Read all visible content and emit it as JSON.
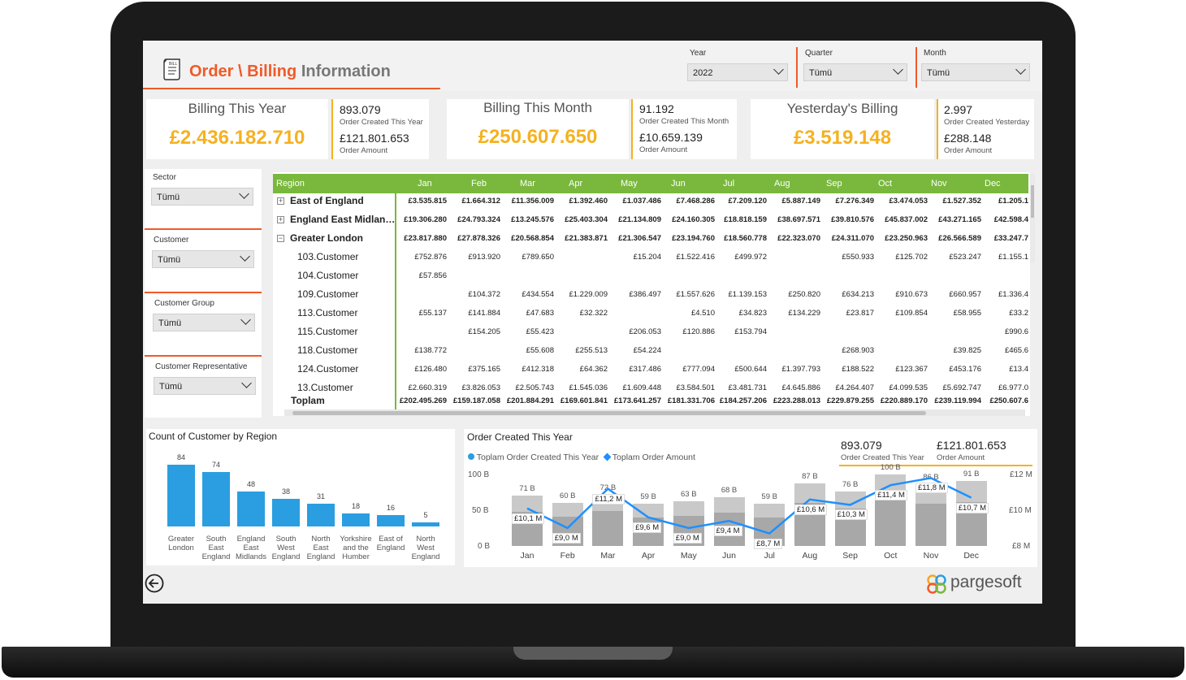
{
  "header": {
    "title_part1": "Order \\ Billing",
    "title_part2": "Information",
    "icon_text": "BILL"
  },
  "filters": {
    "year": {
      "label": "Year",
      "value": "2022"
    },
    "quarter": {
      "label": "Quarter",
      "value": "Tümü"
    },
    "month": {
      "label": "Month",
      "value": "Tümü"
    },
    "sector": {
      "label": "Sector",
      "value": "Tümü"
    },
    "customer": {
      "label": "Customer",
      "value": "Tümü"
    },
    "customer_group": {
      "label": "Customer Group",
      "value": "Tümü"
    },
    "customer_rep": {
      "label": "Customer Representative",
      "value": "Tümü"
    }
  },
  "kpis": [
    {
      "title": "Billing This Year",
      "value": "£2.436.182.710",
      "count": "893.079",
      "count_caption": "Order Created This Year",
      "amount": "£121.801.653",
      "amount_caption": "Order Amount"
    },
    {
      "title": "Billing This Month",
      "value": "£250.607.650",
      "count": "91.192",
      "count_caption": "Order Created This Month",
      "amount": "£10.659.139",
      "amount_caption": "Order Amount"
    },
    {
      "title": "Yesterday's Billing",
      "value": "£3.519.148",
      "count": "2.997",
      "count_caption": "Order Created Yesterday",
      "amount": "£288.148",
      "amount_caption": "Order Amount"
    }
  ],
  "matrix": {
    "columns": [
      "Region",
      "Jan",
      "Feb",
      "Mar",
      "Apr",
      "May",
      "Jun",
      "Jul",
      "Aug",
      "Sep",
      "Oct",
      "Nov",
      "Dec"
    ],
    "rows": [
      {
        "label": "East of England",
        "level": 0,
        "expander": "+",
        "bold": true,
        "values": [
          "£3.535.815",
          "£1.664.312",
          "£11.356.009",
          "£1.392.460",
          "£1.037.486",
          "£7.468.286",
          "£7.209.120",
          "£5.887.149",
          "£7.276.349",
          "£3.474.053",
          "£1.527.352",
          "£1.205.1"
        ]
      },
      {
        "label": "England East Midlan…",
        "level": 0,
        "expander": "+",
        "bold": true,
        "values": [
          "£19.306.280",
          "£24.793.324",
          "£13.245.576",
          "£25.403.304",
          "£21.134.809",
          "£24.160.305",
          "£18.818.159",
          "£38.697.571",
          "£39.810.576",
          "£45.837.002",
          "£43.271.165",
          "£42.598.4"
        ]
      },
      {
        "label": "Greater London",
        "level": 0,
        "expander": "−",
        "bold": true,
        "values": [
          "£23.817.880",
          "£27.878.326",
          "£20.568.854",
          "£21.383.871",
          "£21.306.547",
          "£23.194.760",
          "£18.560.778",
          "£22.323.070",
          "£24.311.070",
          "£23.250.963",
          "£26.566.589",
          "£33.247.7"
        ]
      },
      {
        "label": "103.Customer",
        "level": 1,
        "expander": "",
        "bold": false,
        "values": [
          "£752.876",
          "£913.920",
          "£789.650",
          "",
          "£15.204",
          "£1.522.416",
          "£499.972",
          "",
          "£550.933",
          "£125.702",
          "£523.247",
          "£1.155.1"
        ]
      },
      {
        "label": "104.Customer",
        "level": 1,
        "expander": "",
        "bold": false,
        "values": [
          "£57.856",
          "",
          "",
          "",
          "",
          "",
          "",
          "",
          "",
          "",
          "",
          ""
        ]
      },
      {
        "label": "109.Customer",
        "level": 1,
        "expander": "",
        "bold": false,
        "values": [
          "",
          "£104.372",
          "£434.554",
          "£1.229.009",
          "£386.497",
          "£1.557.626",
          "£1.139.153",
          "£250.820",
          "£634.213",
          "£910.673",
          "£660.957",
          "£1.336.4"
        ]
      },
      {
        "label": "113.Customer",
        "level": 1,
        "expander": "",
        "bold": false,
        "values": [
          "£55.137",
          "£141.884",
          "£47.683",
          "£32.322",
          "",
          "£4.510",
          "£34.823",
          "£134.229",
          "£23.817",
          "£109.854",
          "£58.955",
          "£33.2"
        ]
      },
      {
        "label": "115.Customer",
        "level": 1,
        "expander": "",
        "bold": false,
        "values": [
          "",
          "£154.205",
          "£55.423",
          "",
          "£206.053",
          "£120.886",
          "£153.794",
          "",
          "",
          "",
          "",
          "£990.6"
        ]
      },
      {
        "label": "118.Customer",
        "level": 1,
        "expander": "",
        "bold": false,
        "values": [
          "£138.772",
          "",
          "£55.608",
          "£255.513",
          "£54.224",
          "",
          "",
          "",
          "£268.903",
          "",
          "£39.825",
          "£465.6"
        ]
      },
      {
        "label": "124.Customer",
        "level": 1,
        "expander": "",
        "bold": false,
        "values": [
          "£126.480",
          "£375.165",
          "£412.318",
          "£64.362",
          "£317.486",
          "£777.094",
          "£500.644",
          "£1.397.793",
          "£188.522",
          "£123.367",
          "£453.176",
          "£13.4"
        ]
      },
      {
        "label": "13.Customer",
        "level": 1,
        "expander": "",
        "bold": false,
        "values": [
          "£2.660.319",
          "£3.826.053",
          "£2.505.743",
          "£1.545.036",
          "£1.609.448",
          "£3.584.501",
          "£3.481.731",
          "£4.645.886",
          "£4.264.407",
          "£4.099.535",
          "£5.692.747",
          "£6.977.0"
        ]
      }
    ],
    "total": {
      "label": "Toplam",
      "values": [
        "£202.495.269",
        "£159.187.058",
        "£201.884.291",
        "£169.601.841",
        "£173.641.257",
        "£181.331.706",
        "£184.257.206",
        "£223.288.013",
        "£229.879.255",
        "£220.889.170",
        "£239.119.994",
        "£250.607.6"
      ]
    }
  },
  "bar_chart": {
    "title": "Count of Customer by Region"
  },
  "combo_chart": {
    "title": "Order Created This Year",
    "legend": [
      "Toplam Order Created This Year",
      "Toplam Order Amount"
    ],
    "kpi_count": "893.079",
    "kpi_count_caption": "Order Created This Year",
    "kpi_amount": "£121.801.653",
    "kpi_amount_caption": "Order Amount",
    "left_axis": [
      "100 B",
      "50 B",
      "0 B"
    ],
    "right_axis": [
      "£12 M",
      "£10 M",
      "£8 M"
    ]
  },
  "chart_data": [
    {
      "type": "bar",
      "title": "Count of Customer by Region",
      "categories": [
        "Greater London",
        "South East England",
        "England East Midlands",
        "South West England",
        "North East England",
        "Yorkshire and the Humber",
        "East of England",
        "North West England"
      ],
      "values": [
        84,
        74,
        48,
        38,
        31,
        18,
        16,
        5
      ]
    },
    {
      "type": "bar",
      "title": "Order Created This Year",
      "categories": [
        "Jan",
        "Feb",
        "Mar",
        "Apr",
        "May",
        "Jun",
        "Jul",
        "Aug",
        "Sep",
        "Oct",
        "Nov",
        "Dec"
      ],
      "series": [
        {
          "name": "Toplam Order Created This Year",
          "values": [
            71,
            60,
            72,
            59,
            63,
            68,
            59,
            87,
            76,
            100,
            86,
            91
          ],
          "labels": [
            "71 B",
            "60 B",
            "72 B",
            "59 B",
            "63 B",
            "68 B",
            "59 B",
            "87 B",
            "76 B",
            "100 B",
            "86 B",
            "91 B"
          ]
        },
        {
          "name": "Toplam Order Amount",
          "values": [
            10.1,
            9.0,
            11.2,
            9.6,
            9.0,
            9.4,
            8.7,
            10.6,
            10.3,
            11.4,
            11.8,
            10.7
          ],
          "labels": [
            "£10,1 M",
            "£9,0 M",
            "£11,2 M",
            "£9,6 M",
            "£9,0 M",
            "£9,4 M",
            "£8,7 M",
            "£10,6 M",
            "£10,3 M",
            "£11,4 M",
            "£11,8 M",
            "£10,7 M"
          ]
        }
      ],
      "ylim": [
        0,
        100
      ],
      "y2lim": [
        8,
        12
      ]
    }
  ],
  "footer": {
    "brand": "pargesoft",
    "back_icon": "back-arrow-icon"
  },
  "colors": {
    "accent_orange": "#f05a28",
    "kpi_gold": "#f5b120",
    "matrix_header": "#79b83d",
    "bar_blue": "#2a9ee0",
    "bar_gray": "#a8a8a8",
    "line_blue": "#1e90ff"
  }
}
